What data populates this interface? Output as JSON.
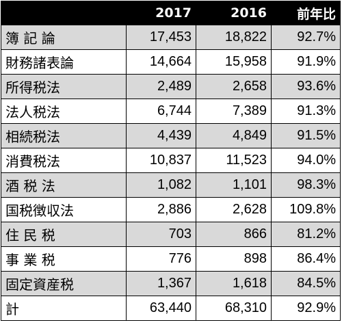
{
  "table": {
    "headers": [
      "",
      "2017",
      "2016",
      "前年比"
    ],
    "rows": [
      {
        "label": "簿 記 論",
        "y2017": "17,453",
        "y2016": "18,822",
        "ratio": "92.7%"
      },
      {
        "label": "財務諸表論",
        "y2017": "14,664",
        "y2016": "15,958",
        "ratio": "91.9%"
      },
      {
        "label": "所得税法",
        "y2017": "2,489",
        "y2016": "2,658",
        "ratio": "93.6%"
      },
      {
        "label": "法人税法",
        "y2017": "6,744",
        "y2016": "7,389",
        "ratio": "91.3%"
      },
      {
        "label": "相続税法",
        "y2017": "4,439",
        "y2016": "4,849",
        "ratio": "91.5%"
      },
      {
        "label": "消費税法",
        "y2017": "10,837",
        "y2016": "11,523",
        "ratio": "94.0%"
      },
      {
        "label": "酒 税 法",
        "y2017": "1,082",
        "y2016": "1,101",
        "ratio": "98.3%"
      },
      {
        "label": "国税徴収法",
        "y2017": "2,886",
        "y2016": "2,628",
        "ratio": "109.8%"
      },
      {
        "label": "住 民 税",
        "y2017": "703",
        "y2016": "866",
        "ratio": "81.2%"
      },
      {
        "label": "事 業 税",
        "y2017": "776",
        "y2016": "898",
        "ratio": "86.4%"
      },
      {
        "label": "固定資産税",
        "y2017": "1,367",
        "y2016": "1,618",
        "ratio": "84.5%"
      },
      {
        "label": "計",
        "y2017": "63,440",
        "y2016": "68,310",
        "ratio": "92.9%"
      }
    ]
  },
  "colors": {
    "header_bg": "#000000",
    "header_text": "#ffffff",
    "shaded_row": "#d9d9d9",
    "plain_row": "#ffffff",
    "border": "#000000"
  }
}
